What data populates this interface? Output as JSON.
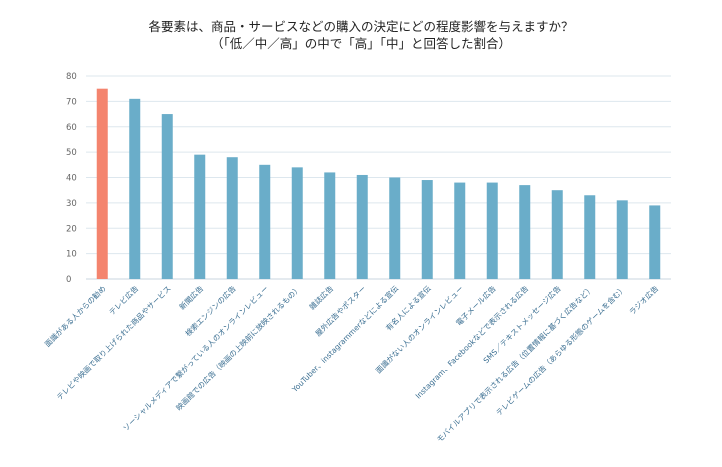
{
  "chart_data": {
    "type": "bar",
    "title": "各要素は、商品・サービスなどの購入の決定にどの程度影響を与えますか？",
    "subtitle": "（「低／中／高」の中で「高」「中」と回答した割合）",
    "xlabel": "",
    "ylabel": "",
    "ylim": [
      0,
      80
    ],
    "yticks": [
      0,
      10,
      20,
      30,
      40,
      50,
      60,
      70,
      80
    ],
    "grid": true,
    "colors": {
      "highlight": "#f4846e",
      "default": "#6aadc9",
      "grid": "#dde7ee"
    },
    "highlight_index": 0,
    "categories": [
      "面識がある人からの勧め",
      "テレビ広告",
      "テレビや映画で取り上げられた商品やサービス",
      "新聞広告",
      "検索エンジンの広告",
      "ソーシャルメディアで繋がっている人のオンラインレビュー",
      "映画館での広告（映画の上映前に放映されるもの）",
      "雑誌広告",
      "屋外広告やポスター",
      "YouTuber、instagrammerなどによる宣伝",
      "有名人による宣伝",
      "面識がない人のオンラインレビュー",
      "電子メール広告",
      "Instagram、Facebookなどで表示される広告",
      "SMS／テキストメッセージ広告",
      "モバイルアプリで表示される広告（位置情報に基づく広告など）",
      "テレビゲームの広告（あらゆる形態のゲームを含む）",
      "ラジオ広告"
    ],
    "values": [
      75,
      71,
      65,
      49,
      48,
      45,
      44,
      42,
      41,
      40,
      39,
      38,
      38,
      37,
      35,
      33,
      31,
      29
    ]
  }
}
